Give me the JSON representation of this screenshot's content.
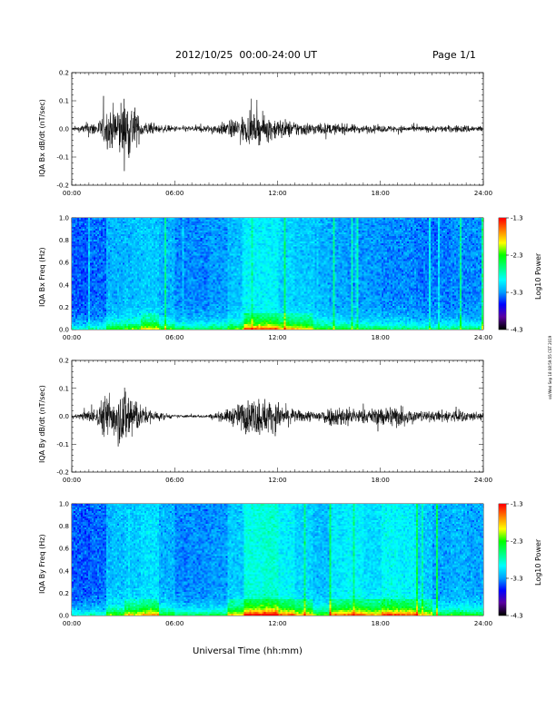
{
  "header": {
    "title": "2012/10/25  00:00-24:00 UT",
    "page": "Page 1/1"
  },
  "footer": {
    "xlabel": "Universal Time (hh:mm)",
    "stamp": "ssl/Wed Sep 18 08:59:55 CST 2019"
  },
  "colors": {
    "trace": "#000000",
    "axes": "#000000",
    "colormap": [
      "#000000",
      "#5a00a0",
      "#0000ff",
      "#00a0ff",
      "#00ffff",
      "#00ff80",
      "#00ff00",
      "#ffff00",
      "#ff8000",
      "#ff0000"
    ]
  },
  "chart_data": [
    {
      "type": "line",
      "ylabel": "IQA Bx dB/dt (nT/sec)",
      "xlim": [
        "00:00",
        "24:00"
      ],
      "xticks": [
        "00:00",
        "06:00",
        "12:00",
        "18:00",
        "24:00"
      ],
      "ylim": [
        -0.2,
        0.2
      ],
      "yticks": [
        "-0.2",
        "-0.1",
        "0.0",
        "0.1",
        "0.2"
      ],
      "series": [
        {
          "x": [
            0,
            0.5,
            1,
            1.5,
            2,
            2.5,
            3,
            3.5,
            4,
            5,
            6,
            7,
            8,
            9,
            10,
            11,
            12,
            13,
            14,
            15,
            16,
            17,
            18,
            19,
            20,
            21,
            22,
            23,
            24
          ],
          "y_envelope": [
            0.012,
            0.02,
            0.05,
            0.04,
            0.12,
            0.15,
            0.2,
            0.19,
            0.06,
            0.025,
            0.02,
            0.02,
            0.025,
            0.045,
            0.085,
            0.09,
            0.07,
            0.05,
            0.04,
            0.035,
            0.03,
            0.025,
            0.022,
            0.022,
            0.02,
            0.02,
            0.022,
            0.025,
            0.02
          ]
        }
      ]
    },
    {
      "type": "heatmap",
      "ylabel": "IQA Bx Freq (Hz)",
      "xlim": [
        "00:00",
        "24:00"
      ],
      "xticks": [
        "00:00",
        "06:00",
        "12:00",
        "18:00",
        "24:00"
      ],
      "ylim": [
        0.0,
        1.0
      ],
      "yticks": [
        "0.0",
        "0.2",
        "0.4",
        "0.6",
        "0.8",
        "1.0"
      ],
      "colorbar": {
        "label": "Log10 Power",
        "ticks": [
          "-1.3",
          "-2.3",
          "-3.3",
          "-4.3"
        ],
        "range": [
          -4.3,
          -1.3
        ]
      },
      "activity": [
        0.15,
        0.2,
        0.45,
        0.5,
        0.55,
        0.45,
        0.3,
        0.3,
        0.35,
        0.5,
        0.75,
        0.75,
        0.6,
        0.55,
        0.45,
        0.4,
        0.35,
        0.35,
        0.3,
        0.3,
        0.25,
        0.25,
        0.3,
        0.3,
        0.25
      ]
    },
    {
      "type": "line",
      "ylabel": "IQA By dB/dt (nT/sec)",
      "xlim": [
        "00:00",
        "24:00"
      ],
      "xticks": [
        "00:00",
        "06:00",
        "12:00",
        "18:00",
        "24:00"
      ],
      "ylim": [
        -0.2,
        0.2
      ],
      "yticks": [
        "-0.2",
        "-0.1",
        "0.0",
        "0.1",
        "0.2"
      ],
      "series": [
        {
          "x": [
            0,
            0.5,
            1,
            1.5,
            2,
            2.5,
            3,
            3.5,
            4,
            5,
            6,
            7,
            8,
            9,
            10,
            11,
            12,
            13,
            14,
            15,
            16,
            17,
            18,
            19,
            20,
            21,
            22,
            23,
            24
          ],
          "y_envelope": [
            0.012,
            0.018,
            0.04,
            0.06,
            0.16,
            0.14,
            0.2,
            0.2,
            0.07,
            0.03,
            0.01,
            0.01,
            0.012,
            0.04,
            0.1,
            0.13,
            0.09,
            0.04,
            0.035,
            0.06,
            0.07,
            0.04,
            0.06,
            0.08,
            0.04,
            0.03,
            0.045,
            0.035,
            0.025
          ]
        }
      ]
    },
    {
      "type": "heatmap",
      "ylabel": "IQA By Freq (Hz)",
      "xlim": [
        "00:00",
        "24:00"
      ],
      "xticks": [
        "00:00",
        "06:00",
        "12:00",
        "18:00",
        "24:00"
      ],
      "ylim": [
        0.0,
        1.0
      ],
      "yticks": [
        "0.0",
        "0.2",
        "0.4",
        "0.6",
        "0.8",
        "1.0"
      ],
      "colorbar": {
        "label": "Log10 Power",
        "ticks": [
          "-1.3",
          "-2.3",
          "-3.3",
          "-4.3"
        ],
        "range": [
          -4.3,
          -1.3
        ]
      },
      "activity": [
        0.15,
        0.2,
        0.5,
        0.55,
        0.65,
        0.45,
        0.3,
        0.3,
        0.35,
        0.55,
        0.9,
        0.95,
        0.75,
        0.6,
        0.5,
        0.7,
        0.75,
        0.65,
        0.8,
        0.75,
        0.55,
        0.4,
        0.45,
        0.4,
        0.3
      ]
    }
  ]
}
